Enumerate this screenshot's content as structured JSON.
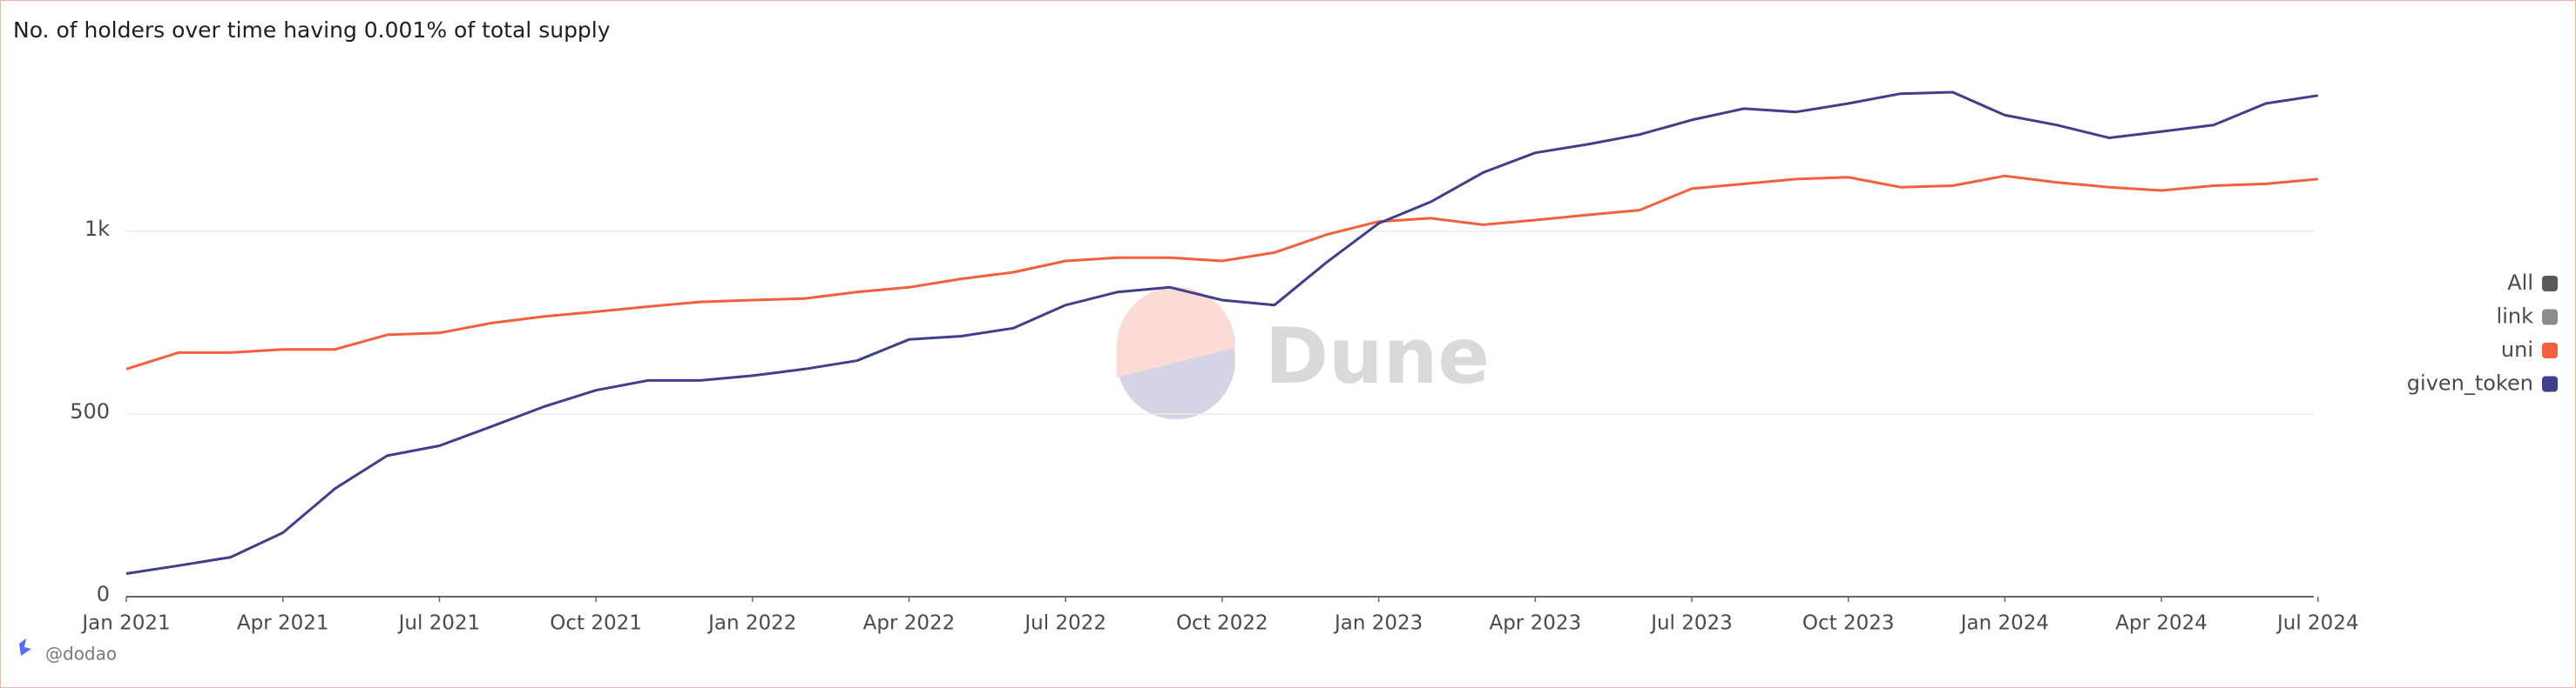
{
  "chart_data": {
    "type": "line",
    "title": "No. of holders over time having 0.001% of total supply",
    "watermark": "Dune",
    "footer": "@dodao",
    "x": [
      "Jan 2021",
      "Feb 2021",
      "Mar 2021",
      "Apr 2021",
      "May 2021",
      "Jun 2021",
      "Jul 2021",
      "Aug 2021",
      "Sep 2021",
      "Oct 2021",
      "Nov 2021",
      "Dec 2021",
      "Jan 2022",
      "Feb 2022",
      "Mar 2022",
      "Apr 2022",
      "May 2022",
      "Jun 2022",
      "Jul 2022",
      "Aug 2022",
      "Sep 2022",
      "Oct 2022",
      "Nov 2022",
      "Dec 2022",
      "Jan 2023",
      "Feb 2023",
      "Mar 2023",
      "Apr 2023",
      "May 2023",
      "Jun 2023",
      "Jul 2023",
      "Aug 2023",
      "Sep 2023",
      "Oct 2023",
      "Nov 2023",
      "Dec 2023",
      "Jan 2024",
      "Feb 2024",
      "Mar 2024",
      "Apr 2024",
      "May 2024",
      "Jun 2024",
      "Jul 2024"
    ],
    "series": [
      {
        "name": "All",
        "color": "#5a5a5e",
        "values": [
          null,
          null,
          null,
          null,
          null,
          null,
          null,
          null,
          null,
          null,
          null,
          null,
          null,
          null,
          null,
          null,
          null,
          null,
          null,
          null,
          null,
          null,
          null,
          null,
          null,
          null,
          null,
          null,
          null,
          null,
          null,
          null,
          null,
          null,
          null,
          null,
          null,
          null,
          null,
          null,
          null,
          null,
          null
        ]
      },
      {
        "name": "link",
        "color": "#8c8c8c",
        "values": [
          null,
          null,
          null,
          null,
          null,
          null,
          null,
          null,
          null,
          null,
          null,
          null,
          null,
          null,
          null,
          null,
          null,
          null,
          null,
          null,
          null,
          null,
          null,
          null,
          null,
          null,
          null,
          null,
          null,
          null,
          null,
          null,
          null,
          null,
          null,
          null,
          null,
          null,
          null,
          null,
          null,
          null,
          null
        ]
      },
      {
        "name": "uni",
        "color": "#f4603e",
        "values": [
          623,
          668,
          668,
          677,
          677,
          717,
          722,
          749,
          767,
          780,
          794,
          807,
          812,
          816,
          834,
          847,
          870,
          888,
          919,
          928,
          928,
          919,
          942,
          991,
          1027,
          1036,
          1018,
          1031,
          1045,
          1058,
          1117,
          1130,
          1143,
          1148,
          1121,
          1125,
          1152,
          1134,
          1121,
          1112,
          1125,
          1130,
          1143
        ]
      },
      {
        "name": "given_token",
        "color": "#3f3f8a",
        "values": [
          63,
          85,
          108,
          175,
          296,
          386,
          413,
          466,
          520,
          565,
          592,
          592,
          605,
          623,
          646,
          704,
          713,
          735,
          798,
          834,
          847,
          812,
          798,
          915,
          1022,
          1081,
          1161,
          1215,
          1238,
          1265,
          1305,
          1336,
          1327,
          1350,
          1377,
          1381,
          1318,
          1291,
          1256,
          1273,
          1291,
          1350,
          1372
        ]
      }
    ],
    "ylim": [
      0,
      1450
    ],
    "yticks": [
      0,
      500,
      {
        "value": 1000,
        "label": "1k"
      }
    ],
    "grid": true,
    "legend": "right"
  }
}
